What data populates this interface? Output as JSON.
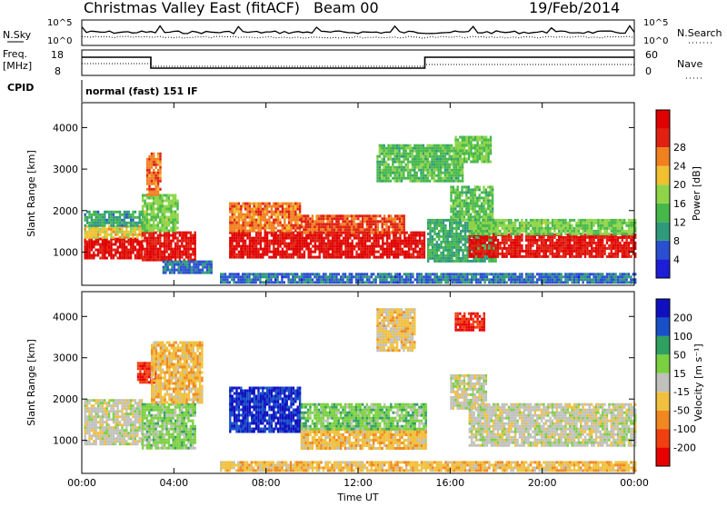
{
  "header": {
    "station": "Christmas Valley East (fitACF)",
    "beam": "Beam 00",
    "date": "19/Feb/2014"
  },
  "strip_labels": {
    "nsky": "N.Sky",
    "nsky_hi": "10^5",
    "nsky_lo": "10^0",
    "nsearch": "N.Search",
    "nsearch_hi": "10^5",
    "nsearch_lo": "10^0",
    "freq": "Freq.",
    "freq_unit": "[MHz]",
    "freq_hi": "18",
    "freq_lo": "8",
    "nave": "Nave",
    "nave_hi": "60",
    "nave_lo": "0",
    "cpid": "CPID",
    "mode": "normal (fast) 151 IF"
  },
  "chart_data": [
    {
      "type": "heatmap",
      "panel": "power",
      "ylabel": "Slant Range [km]",
      "yticks": [
        "1000",
        "2000",
        "3000",
        "4000"
      ],
      "ylim": [
        200,
        4600
      ],
      "xlim": [
        0,
        24
      ],
      "colorbar_label": "Power [dB]",
      "colorbar_ticks": [
        "4",
        "8",
        "12",
        "16",
        "20",
        "24",
        "28"
      ],
      "colorbar_range": [
        0,
        30
      ],
      "colors": [
        "#1d1dd8",
        "#2a4fd0",
        "#2f9a7a",
        "#46b84a",
        "#8fd448",
        "#f0c030",
        "#f08020",
        "#e02010",
        "#e00000"
      ],
      "regions": [
        {
          "t": [
            0.1,
            2.6
          ],
          "r": [
            850,
            1350
          ],
          "v": 28
        },
        {
          "t": [
            0.1,
            2.6
          ],
          "r": [
            1350,
            1650
          ],
          "v": 18
        },
        {
          "t": [
            0.1,
            2.6
          ],
          "r": [
            1650,
            2000
          ],
          "v": 9
        },
        {
          "t": [
            2.6,
            4.9
          ],
          "r": [
            800,
            1500
          ],
          "v": 27
        },
        {
          "t": [
            2.6,
            4.2
          ],
          "r": [
            1500,
            2400
          ],
          "v": 14
        },
        {
          "t": [
            2.8,
            3.4
          ],
          "r": [
            2400,
            3400
          ],
          "v": 22
        },
        {
          "t": [
            3.5,
            5.6
          ],
          "r": [
            500,
            800
          ],
          "v": 6
        },
        {
          "t": [
            6.4,
            14.9
          ],
          "r": [
            850,
            1500
          ],
          "v": 28
        },
        {
          "t": [
            6.4,
            9.5
          ],
          "r": [
            1500,
            2200
          ],
          "v": 22
        },
        {
          "t": [
            9.5,
            14.0
          ],
          "r": [
            1500,
            1900
          ],
          "v": 24
        },
        {
          "t": [
            6.0,
            24.0
          ],
          "r": [
            250,
            500
          ],
          "v": 6
        },
        {
          "t": [
            12.8,
            16.5
          ],
          "r": [
            2700,
            3600
          ],
          "v": 12
        },
        {
          "t": [
            15.0,
            18.0
          ],
          "r": [
            800,
            1800
          ],
          "v": 10
        },
        {
          "t": [
            16.8,
            24.0
          ],
          "r": [
            900,
            1450
          ],
          "v": 27
        },
        {
          "t": [
            16.8,
            24.0
          ],
          "r": [
            1450,
            1800
          ],
          "v": 14
        },
        {
          "t": [
            16.0,
            17.8
          ],
          "r": [
            1800,
            2600
          ],
          "v": 12
        },
        {
          "t": [
            16.2,
            17.8
          ],
          "r": [
            3200,
            3800
          ],
          "v": 13
        }
      ]
    },
    {
      "type": "heatmap",
      "panel": "velocity",
      "ylabel": "Slant Range [km]",
      "xlabel": "Time UT",
      "yticks": [
        "1000",
        "2000",
        "3000",
        "4000"
      ],
      "ylim": [
        200,
        4600
      ],
      "xlim": [
        0,
        24
      ],
      "xticks": [
        "00:00",
        "04:00",
        "08:00",
        "12:00",
        "16:00",
        "20:00",
        "00:00"
      ],
      "colorbar_label": "Velocity [m s⁻¹]",
      "colorbar_ticks": [
        "200",
        "100",
        "50",
        "15",
        "-15",
        "-50",
        "-100",
        "-200"
      ],
      "colorbar_range": [
        -250,
        250
      ],
      "colors": [
        "#e80000",
        "#f04010",
        "#f08820",
        "#f0c040",
        "#c0c0bc",
        "#7ad040",
        "#30a060",
        "#1850c8",
        "#1010c0"
      ],
      "regions": [
        {
          "t": [
            0.1,
            2.6
          ],
          "r": [
            900,
            2000
          ],
          "v": 0
        },
        {
          "t": [
            2.4,
            3.2
          ],
          "r": [
            2400,
            2900
          ],
          "v": -200
        },
        {
          "t": [
            2.6,
            4.9
          ],
          "r": [
            800,
            1900
          ],
          "v": 50
        },
        {
          "t": [
            3.0,
            5.2
          ],
          "r": [
            1900,
            3400
          ],
          "v": -60
        },
        {
          "t": [
            6.4,
            9.5
          ],
          "r": [
            1200,
            2300
          ],
          "v": 200
        },
        {
          "t": [
            9.5,
            14.9
          ],
          "r": [
            800,
            1300
          ],
          "v": -60
        },
        {
          "t": [
            9.5,
            14.9
          ],
          "r": [
            1300,
            1900
          ],
          "v": 60
        },
        {
          "t": [
            6.0,
            24.0
          ],
          "r": [
            250,
            500
          ],
          "v": -60
        },
        {
          "t": [
            16.0,
            17.6
          ],
          "r": [
            1800,
            2600
          ],
          "v": 0
        },
        {
          "t": [
            16.8,
            24.0
          ],
          "r": [
            900,
            1900
          ],
          "v": 0
        },
        {
          "t": [
            16.2,
            17.5
          ],
          "r": [
            3700,
            4100
          ],
          "v": -200
        },
        {
          "t": [
            12.8,
            14.5
          ],
          "r": [
            3200,
            4200
          ],
          "v": -50
        }
      ]
    }
  ]
}
